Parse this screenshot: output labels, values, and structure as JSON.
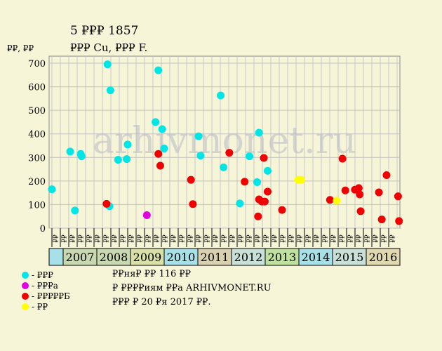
{
  "chart_data": {
    "type": "scatter",
    "title": "5 ₽₽₽ 1857",
    "subtitle": "₽₽₽ Cu, ₽₽₽ F.",
    "ylabel": "₽₽, ₽₽",
    "ylim": [
      0,
      700
    ],
    "yticks": [
      0,
      100,
      200,
      300,
      400,
      500,
      600,
      700
    ],
    "grid": true,
    "watermark": "arhivmonet.ru",
    "years": [
      "2007",
      "2008",
      "2009",
      "2010",
      "2011",
      "2012",
      "2013",
      "2014",
      "2015",
      "2016"
    ],
    "year_colors": [
      "#c8d8b0",
      "#c8d8b0",
      "#d8e0a8",
      "#a8e0e8",
      "#d8d0b0",
      "#c8e0d8",
      "#c0e0a0",
      "#a8e0e8",
      "#c8e0d8",
      "#e0d8b0"
    ],
    "x_tick_labels": [
      "₽₽",
      "₽₽",
      "₽₽",
      "₽₽",
      "₽₽",
      "₽₽",
      "₽₽",
      "₽₽",
      "₽₽",
      "₽₽",
      "₽₽",
      "₽₽",
      "₽₽",
      "₽₽",
      "₽₽",
      "₽₽",
      "₽₽",
      "₽₽",
      "₽₽",
      "₽₽",
      "₽₽",
      "₽₽",
      "₽₽",
      "₽₽",
      "₽₽",
      "₽₽",
      "₽₽",
      "₽₽",
      "₽₽",
      "₽₽",
      "₽₽",
      "₽₽",
      "₽₽",
      "₽₽",
      "₽₽",
      "₽₽",
      "₽₽",
      "₽₽",
      "₽₽",
      "₽₽",
      "₽₽"
    ],
    "series": [
      {
        "name": "₽₽₽",
        "color": "#00e5e5",
        "points": [
          {
            "x": 0.0,
            "y": 165
          },
          {
            "x": 1.9,
            "y": 325
          },
          {
            "x": 2.4,
            "y": 75
          },
          {
            "x": 3.0,
            "y": 315
          },
          {
            "x": 3.1,
            "y": 305
          },
          {
            "x": 5.8,
            "y": 695
          },
          {
            "x": 6.1,
            "y": 585
          },
          {
            "x": 6.0,
            "y": 93
          },
          {
            "x": 6.9,
            "y": 290
          },
          {
            "x": 7.9,
            "y": 355
          },
          {
            "x": 7.8,
            "y": 293
          },
          {
            "x": 10.8,
            "y": 450
          },
          {
            "x": 11.1,
            "y": 670
          },
          {
            "x": 11.5,
            "y": 420
          },
          {
            "x": 11.7,
            "y": 338
          },
          {
            "x": 15.3,
            "y": 390
          },
          {
            "x": 15.5,
            "y": 308
          },
          {
            "x": 17.6,
            "y": 563
          },
          {
            "x": 17.9,
            "y": 258
          },
          {
            "x": 19.6,
            "y": 105
          },
          {
            "x": 20.6,
            "y": 305
          },
          {
            "x": 21.6,
            "y": 405
          },
          {
            "x": 21.4,
            "y": 195
          },
          {
            "x": 22.5,
            "y": 243
          }
        ]
      },
      {
        "name": "₽₽₽а",
        "color": "#e000e0",
        "points": [
          {
            "x": 9.9,
            "y": 55
          }
        ]
      },
      {
        "name": "₽₽₽₽₽Б",
        "color": "#f00000",
        "points": [
          {
            "x": 5.7,
            "y": 103
          },
          {
            "x": 11.1,
            "y": 315
          },
          {
            "x": 11.3,
            "y": 265
          },
          {
            "x": 14.5,
            "y": 205
          },
          {
            "x": 14.7,
            "y": 102
          },
          {
            "x": 18.5,
            "y": 320
          },
          {
            "x": 20.1,
            "y": 197
          },
          {
            "x": 21.6,
            "y": 122
          },
          {
            "x": 21.5,
            "y": 50
          },
          {
            "x": 21.9,
            "y": 113
          },
          {
            "x": 22.2,
            "y": 113
          },
          {
            "x": 22.1,
            "y": 298
          },
          {
            "x": 22.5,
            "y": 155
          },
          {
            "x": 24.0,
            "y": 77
          },
          {
            "x": 29.0,
            "y": 120
          },
          {
            "x": 30.3,
            "y": 295
          },
          {
            "x": 30.6,
            "y": 160
          },
          {
            "x": 31.6,
            "y": 163
          },
          {
            "x": 32.0,
            "y": 170
          },
          {
            "x": 32.1,
            "y": 143
          },
          {
            "x": 32.2,
            "y": 72
          },
          {
            "x": 34.1,
            "y": 152
          },
          {
            "x": 34.4,
            "y": 37
          },
          {
            "x": 34.9,
            "y": 225
          },
          {
            "x": 36.1,
            "y": 135
          },
          {
            "x": 36.2,
            "y": 30
          }
        ]
      },
      {
        "name": "₽₽",
        "color": "#ffff00",
        "points": [
          {
            "x": 25.7,
            "y": 205
          },
          {
            "x": 26.0,
            "y": 205
          },
          {
            "x": 29.7,
            "y": 117
          }
        ]
      }
    ]
  },
  "info": {
    "line1": "₽₽ня₽ ₽₽ 116 ₽₽",
    "line2": "₽ ₽₽₽₽иям ₽₽а ARHIVMONET.RU",
    "line3": "₽₽₽ ₽ 20 ₽я 2017 ₽₽."
  },
  "legend_prefix": "- "
}
